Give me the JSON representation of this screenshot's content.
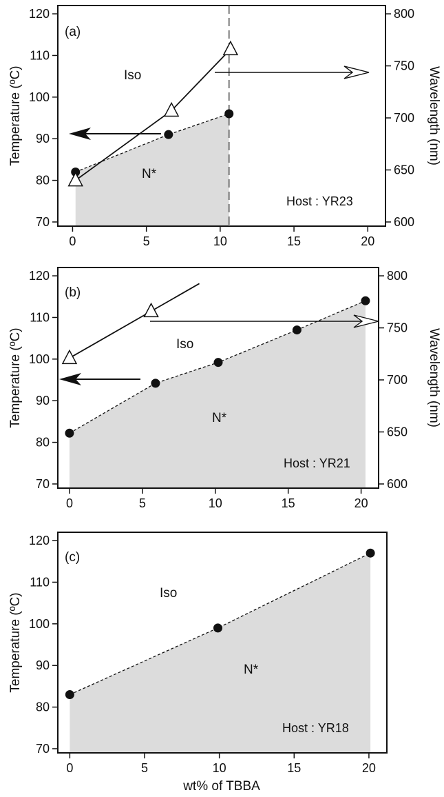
{
  "colors": {
    "fill": "#dcdcdc",
    "line": "#111111",
    "background": "#ffffff"
  },
  "chart_data": [
    {
      "type": "line",
      "panel_label": "(a)",
      "host_label": "Host : YR23",
      "ylabel": "Temperature (ºC)",
      "y2label": "Wavelength (nm)",
      "xlim": [
        -1,
        21.2
      ],
      "ylim": [
        69,
        122
      ],
      "y2lim": [
        596,
        808
      ],
      "xticks": [
        "0",
        "5",
        "10",
        "15",
        "20"
      ],
      "yticks": [
        "70",
        "80",
        "90",
        "100",
        "110",
        "120"
      ],
      "y2ticks": [
        "600",
        "650",
        "700",
        "750",
        "800"
      ],
      "region_labels": {
        "iso": "Iso",
        "nstar": "N*"
      },
      "temperature": {
        "x": [
          0.2,
          6.5,
          10.6
        ],
        "y": [
          82,
          91,
          96
        ]
      },
      "wavelength": {
        "x": [
          0.2,
          6.7,
          10.7
        ],
        "y": [
          640,
          707,
          766
        ]
      },
      "vertical_marker_x": 10.6
    },
    {
      "type": "line",
      "panel_label": "(b)",
      "host_label": "Host : YR21",
      "ylabel": "Temperature (ºC)",
      "y2label": "Wavelength (nm)",
      "xlim": [
        -0.8,
        21.2
      ],
      "ylim": [
        69,
        122
      ],
      "y2lim": [
        596,
        808
      ],
      "xticks": [
        "0",
        "5",
        "10",
        "15",
        "20"
      ],
      "yticks": [
        "70",
        "80",
        "90",
        "100",
        "110",
        "120"
      ],
      "y2ticks": [
        "600",
        "650",
        "700",
        "750",
        "800"
      ],
      "region_labels": {
        "iso": "Iso",
        "nstar": "N*"
      },
      "temperature": {
        "x": [
          0,
          5.9,
          10.2,
          15.6,
          20.3
        ],
        "y": [
          82.2,
          94.2,
          99.2,
          107,
          114
        ]
      },
      "wavelength": {
        "x": [
          0,
          5.6
        ],
        "y": [
          721,
          766
        ]
      }
    },
    {
      "type": "line",
      "panel_label": "(c)",
      "host_label": "Host : YR18",
      "ylabel": "Temperature (ºC)",
      "xlabel": "wt% of TBBA",
      "xlim": [
        -0.8,
        21.2
      ],
      "ylim": [
        69,
        122
      ],
      "xticks": [
        "0",
        "5",
        "10",
        "15",
        "20"
      ],
      "yticks": [
        "70",
        "80",
        "90",
        "100",
        "110",
        "120"
      ],
      "region_labels": {
        "iso": "Iso",
        "nstar": "N*"
      },
      "temperature": {
        "x": [
          0,
          9.9,
          20.1
        ],
        "y": [
          83,
          99,
          117
        ]
      }
    }
  ]
}
